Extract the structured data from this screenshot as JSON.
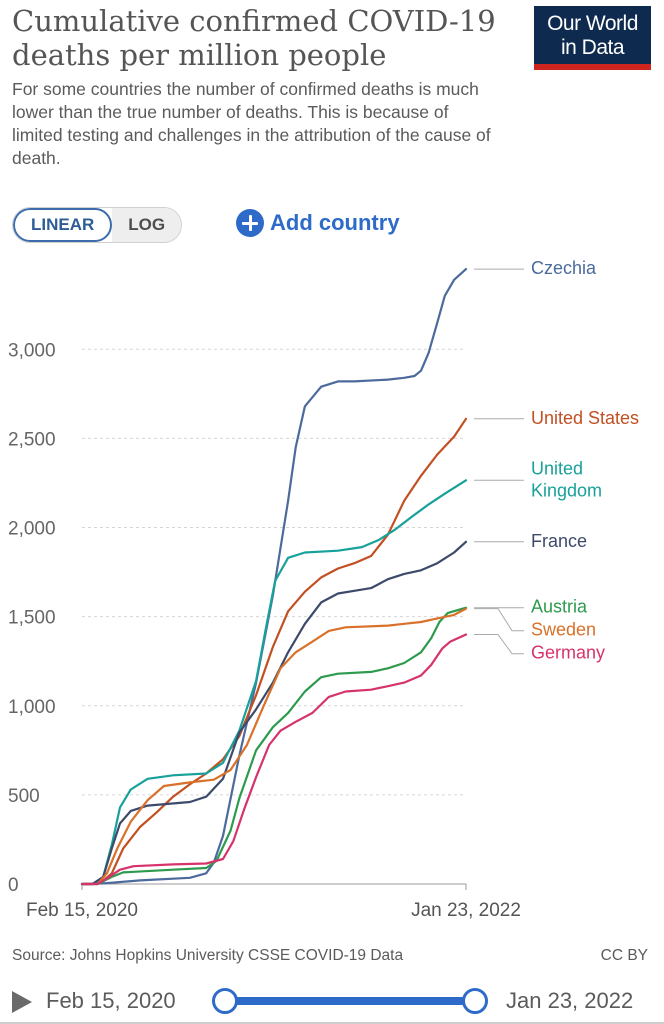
{
  "header": {
    "title": "Cumulative confirmed COVID-19 deaths per million people",
    "subtitle": "For some countries the number of confirmed deaths is much lower than the true number of deaths. This is because of limited testing and challenges in the attribution of the cause of death.",
    "logo_line1": "Our World",
    "logo_line2": "in Data"
  },
  "controls": {
    "linear_label": "LINEAR",
    "log_label": "LOG",
    "add_country_label": "Add country"
  },
  "footer": {
    "source": "Source: Johns Hopkins University CSSE COVID-19 Data",
    "license": "CC BY",
    "timeline_start": "Feb 15, 2020",
    "timeline_end": "Jan 23, 2022"
  },
  "chart_data": {
    "type": "line",
    "title": "Cumulative confirmed COVID-19 deaths per million people",
    "x_labels": [
      "Feb 15, 2020",
      "Jan 23, 2022"
    ],
    "x_range": [
      "2020-02-15",
      "2022-01-23"
    ],
    "ylim": [
      0,
      3400
    ],
    "y_ticks": [
      0,
      500,
      1000,
      1500,
      2000,
      2500,
      3000
    ],
    "y_tick_labels": [
      "0",
      "500",
      "1,000",
      "1,500",
      "2,000",
      "2,500",
      "3,000"
    ],
    "grid": "horizontal dashed",
    "legend": "right end labels",
    "series": [
      {
        "name": "Czechia",
        "color": "#4c6a9c",
        "points": [
          [
            "2020-02-15",
            0
          ],
          [
            "2020-03-01",
            0
          ],
          [
            "2020-04-01",
            5
          ],
          [
            "2020-06-01",
            20
          ],
          [
            "2020-09-01",
            35
          ],
          [
            "2020-10-01",
            60
          ],
          [
            "2020-10-15",
            120
          ],
          [
            "2020-11-01",
            270
          ],
          [
            "2020-12-01",
            720
          ],
          [
            "2021-01-01",
            1130
          ],
          [
            "2021-02-01",
            1620
          ],
          [
            "2021-03-01",
            2150
          ],
          [
            "2021-03-15",
            2450
          ],
          [
            "2021-04-01",
            2680
          ],
          [
            "2021-05-01",
            2790
          ],
          [
            "2021-06-01",
            2820
          ],
          [
            "2021-07-01",
            2820
          ],
          [
            "2021-09-01",
            2830
          ],
          [
            "2021-10-01",
            2840
          ],
          [
            "2021-10-20",
            2850
          ],
          [
            "2021-11-01",
            2880
          ],
          [
            "2021-11-15",
            2980
          ],
          [
            "2021-12-01",
            3150
          ],
          [
            "2021-12-15",
            3300
          ],
          [
            "2022-01-01",
            3390
          ],
          [
            "2022-01-23",
            3450
          ]
        ]
      },
      {
        "name": "United States",
        "color": "#c15022",
        "points": [
          [
            "2020-02-15",
            0
          ],
          [
            "2020-03-01",
            0
          ],
          [
            "2020-03-20",
            5
          ],
          [
            "2020-04-10",
            60
          ],
          [
            "2020-05-01",
            200
          ],
          [
            "2020-06-01",
            320
          ],
          [
            "2020-07-01",
            400
          ],
          [
            "2020-08-01",
            490
          ],
          [
            "2020-09-01",
            560
          ],
          [
            "2020-10-01",
            620
          ],
          [
            "2020-11-01",
            700
          ],
          [
            "2020-12-01",
            830
          ],
          [
            "2021-01-01",
            1060
          ],
          [
            "2021-02-01",
            1330
          ],
          [
            "2021-03-01",
            1530
          ],
          [
            "2021-04-01",
            1640
          ],
          [
            "2021-05-01",
            1720
          ],
          [
            "2021-06-01",
            1770
          ],
          [
            "2021-07-01",
            1800
          ],
          [
            "2021-08-01",
            1840
          ],
          [
            "2021-09-01",
            1960
          ],
          [
            "2021-10-01",
            2150
          ],
          [
            "2021-11-01",
            2290
          ],
          [
            "2021-12-01",
            2410
          ],
          [
            "2022-01-01",
            2510
          ],
          [
            "2022-01-23",
            2610
          ]
        ]
      },
      {
        "name": "United Kingdom",
        "color": "#18a19a",
        "points": [
          [
            "2020-02-15",
            0
          ],
          [
            "2020-03-10",
            0
          ],
          [
            "2020-03-25",
            40
          ],
          [
            "2020-04-10",
            220
          ],
          [
            "2020-04-25",
            430
          ],
          [
            "2020-05-15",
            530
          ],
          [
            "2020-06-15",
            590
          ],
          [
            "2020-08-01",
            610
          ],
          [
            "2020-10-01",
            620
          ],
          [
            "2020-11-01",
            680
          ],
          [
            "2020-12-01",
            860
          ],
          [
            "2021-01-01",
            1140
          ],
          [
            "2021-01-20",
            1450
          ],
          [
            "2021-02-05",
            1700
          ],
          [
            "2021-03-01",
            1830
          ],
          [
            "2021-04-01",
            1860
          ],
          [
            "2021-06-01",
            1870
          ],
          [
            "2021-07-15",
            1890
          ],
          [
            "2021-08-15",
            1930
          ],
          [
            "2021-09-15",
            1990
          ],
          [
            "2021-10-15",
            2060
          ],
          [
            "2021-11-15",
            2130
          ],
          [
            "2021-12-15",
            2190
          ],
          [
            "2022-01-23",
            2265
          ]
        ]
      },
      {
        "name": "France",
        "color": "#3d4a6b",
        "points": [
          [
            "2020-02-15",
            0
          ],
          [
            "2020-03-05",
            0
          ],
          [
            "2020-03-25",
            40
          ],
          [
            "2020-04-10",
            200
          ],
          [
            "2020-04-25",
            340
          ],
          [
            "2020-05-15",
            410
          ],
          [
            "2020-06-15",
            440
          ],
          [
            "2020-09-01",
            460
          ],
          [
            "2020-10-01",
            490
          ],
          [
            "2020-11-01",
            590
          ],
          [
            "2020-12-01",
            850
          ],
          [
            "2021-01-01",
            980
          ],
          [
            "2021-02-01",
            1130
          ],
          [
            "2021-03-01",
            1300
          ],
          [
            "2021-04-01",
            1460
          ],
          [
            "2021-05-01",
            1580
          ],
          [
            "2021-06-01",
            1630
          ],
          [
            "2021-07-01",
            1645
          ],
          [
            "2021-08-01",
            1660
          ],
          [
            "2021-09-01",
            1710
          ],
          [
            "2021-10-01",
            1740
          ],
          [
            "2021-11-01",
            1760
          ],
          [
            "2021-12-01",
            1800
          ],
          [
            "2022-01-01",
            1860
          ],
          [
            "2022-01-23",
            1920
          ]
        ]
      },
      {
        "name": "Austria",
        "color": "#2e9a4d",
        "points": [
          [
            "2020-02-15",
            0
          ],
          [
            "2020-03-15",
            0
          ],
          [
            "2020-04-10",
            40
          ],
          [
            "2020-05-01",
            65
          ],
          [
            "2020-08-01",
            80
          ],
          [
            "2020-10-01",
            90
          ],
          [
            "2020-10-20",
            130
          ],
          [
            "2020-11-15",
            300
          ],
          [
            "2020-12-01",
            480
          ],
          [
            "2021-01-01",
            750
          ],
          [
            "2021-02-01",
            880
          ],
          [
            "2021-03-01",
            960
          ],
          [
            "2021-04-01",
            1080
          ],
          [
            "2021-05-01",
            1160
          ],
          [
            "2021-06-01",
            1180
          ],
          [
            "2021-08-01",
            1190
          ],
          [
            "2021-09-01",
            1210
          ],
          [
            "2021-10-01",
            1240
          ],
          [
            "2021-11-01",
            1300
          ],
          [
            "2021-11-20",
            1380
          ],
          [
            "2021-12-05",
            1470
          ],
          [
            "2021-12-20",
            1520
          ],
          [
            "2022-01-23",
            1550
          ]
        ]
      },
      {
        "name": "Sweden",
        "color": "#d9712a",
        "points": [
          [
            "2020-02-15",
            0
          ],
          [
            "2020-03-15",
            0
          ],
          [
            "2020-04-01",
            60
          ],
          [
            "2020-04-20",
            200
          ],
          [
            "2020-05-15",
            350
          ],
          [
            "2020-06-15",
            470
          ],
          [
            "2020-07-15",
            550
          ],
          [
            "2020-09-01",
            570
          ],
          [
            "2020-10-15",
            585
          ],
          [
            "2020-11-15",
            640
          ],
          [
            "2020-12-15",
            780
          ],
          [
            "2021-01-15",
            1000
          ],
          [
            "2021-02-15",
            1210
          ],
          [
            "2021-03-15",
            1300
          ],
          [
            "2021-04-15",
            1360
          ],
          [
            "2021-05-15",
            1420
          ],
          [
            "2021-06-15",
            1440
          ],
          [
            "2021-09-01",
            1450
          ],
          [
            "2021-10-01",
            1460
          ],
          [
            "2021-11-01",
            1470
          ],
          [
            "2021-12-01",
            1490
          ],
          [
            "2022-01-01",
            1510
          ],
          [
            "2022-01-23",
            1545
          ]
        ]
      },
      {
        "name": "Germany",
        "color": "#d6336c",
        "points": [
          [
            "2020-02-15",
            0
          ],
          [
            "2020-03-15",
            0
          ],
          [
            "2020-04-05",
            40
          ],
          [
            "2020-04-25",
            80
          ],
          [
            "2020-05-20",
            100
          ],
          [
            "2020-08-01",
            110
          ],
          [
            "2020-10-01",
            115
          ],
          [
            "2020-11-01",
            140
          ],
          [
            "2020-11-20",
            240
          ],
          [
            "2020-12-10",
            420
          ],
          [
            "2021-01-01",
            600
          ],
          [
            "2021-01-25",
            780
          ],
          [
            "2021-02-15",
            860
          ],
          [
            "2021-03-15",
            910
          ],
          [
            "2021-04-15",
            960
          ],
          [
            "2021-05-15",
            1050
          ],
          [
            "2021-06-15",
            1080
          ],
          [
            "2021-08-01",
            1090
          ],
          [
            "2021-09-01",
            1110
          ],
          [
            "2021-10-01",
            1130
          ],
          [
            "2021-11-01",
            1170
          ],
          [
            "2021-11-20",
            1230
          ],
          [
            "2021-12-10",
            1320
          ],
          [
            "2021-12-25",
            1360
          ],
          [
            "2022-01-23",
            1400
          ]
        ]
      }
    ],
    "end_labels": [
      {
        "series": 0,
        "lines": [
          "Czechia"
        ]
      },
      {
        "series": 1,
        "lines": [
          "United States"
        ]
      },
      {
        "series": 2,
        "lines": [
          "United",
          "Kingdom"
        ]
      },
      {
        "series": 3,
        "lines": [
          "France"
        ]
      },
      {
        "series": 4,
        "lines": [
          "Austria"
        ]
      },
      {
        "series": 5,
        "lines": [
          "Sweden"
        ]
      },
      {
        "series": 6,
        "lines": [
          "Germany"
        ]
      }
    ]
  }
}
